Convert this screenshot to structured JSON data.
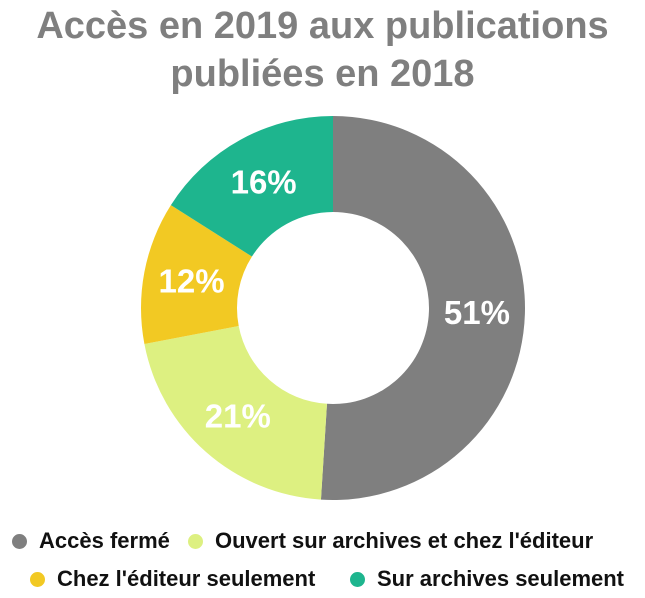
{
  "chart_data": {
    "type": "donut",
    "title_lines": [
      "Accès en 2019 aux publications",
      "publiées en 2018"
    ],
    "unit": "%",
    "slices": [
      {
        "name": "Accès fermé",
        "value": 51,
        "label": "51%",
        "color": "#7f7f7f"
      },
      {
        "name": "Ouvert sur archives et chez l'éditeur",
        "value": 21,
        "label": "21%",
        "color": "#ddf081"
      },
      {
        "name": "Chez l'éditeur seulement",
        "value": 12,
        "label": "12%",
        "color": "#f2c923"
      },
      {
        "name": "Sur archives seulement",
        "value": 16,
        "label": "16%",
        "color": "#1eb58e"
      }
    ],
    "legend_placement": "bottom"
  }
}
